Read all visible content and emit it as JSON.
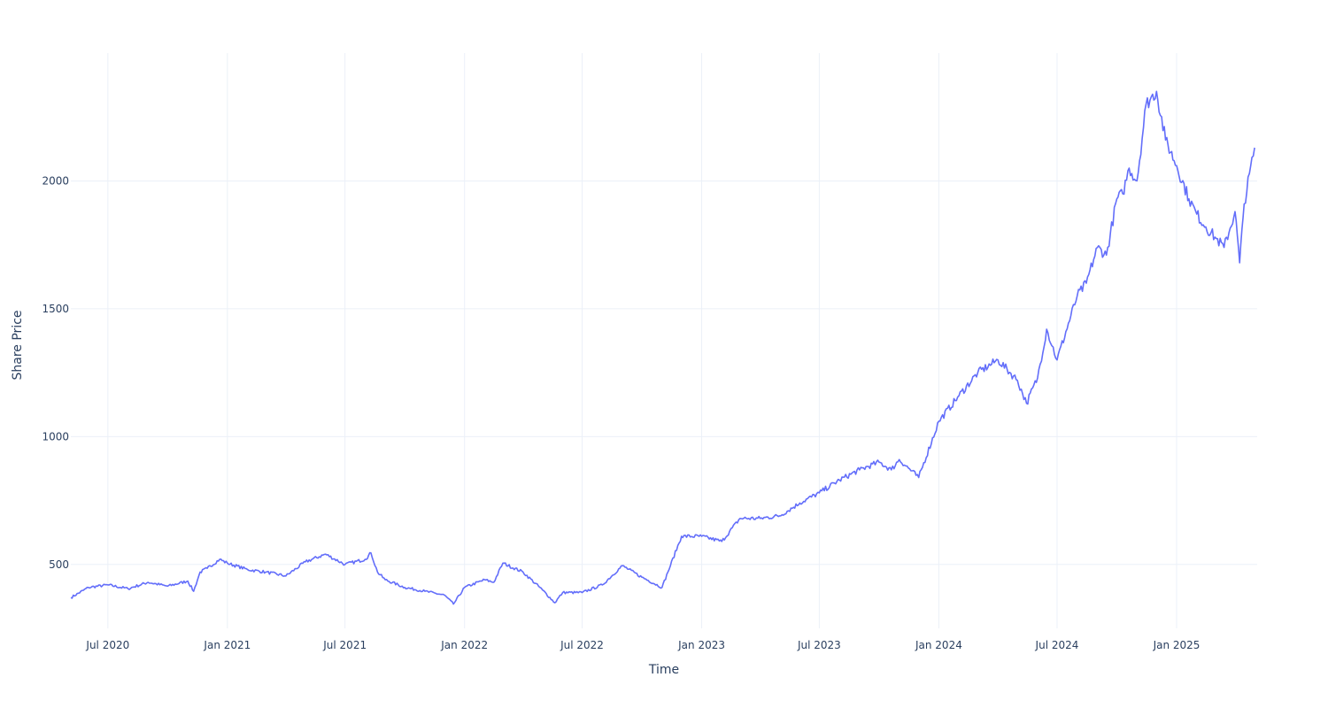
{
  "colors": {
    "series": "#636efa",
    "grid": "#ebf0f8",
    "text": "#2a3f5f"
  },
  "chart_data": {
    "type": "line",
    "title": "",
    "xlabel": "Time",
    "ylabel": "Share Price",
    "grid": true,
    "legend": "none",
    "xlim": [
      "2020-05-05",
      "2025-05-05"
    ],
    "ylim": [
      250,
      2500
    ],
    "x_ticks": [
      "2020-07-01",
      "2021-01-01",
      "2021-07-01",
      "2022-01-01",
      "2022-07-01",
      "2023-01-01",
      "2023-07-01",
      "2024-01-01",
      "2024-07-01",
      "2025-01-01"
    ],
    "x_tick_labels": [
      "Jul 2020",
      "Jan 2021",
      "Jul 2021",
      "Jan 2022",
      "Jul 2022",
      "Jan 2023",
      "Jul 2023",
      "Jan 2024",
      "Jul 2024",
      "Jan 2025"
    ],
    "y_ticks": [
      500,
      1000,
      1500,
      2000
    ],
    "y_tick_labels": [
      "500",
      "1000",
      "1500",
      "2000"
    ],
    "series": [
      {
        "x": [
          "2020-05-05",
          "2020-06-01",
          "2020-07-01",
          "2020-08-01",
          "2020-09-01",
          "2020-10-01",
          "2020-11-01",
          "2020-11-10",
          "2020-11-20",
          "2020-12-01",
          "2020-12-20",
          "2021-01-01",
          "2021-02-01",
          "2021-03-01",
          "2021-04-01",
          "2021-05-01",
          "2021-06-01",
          "2021-07-01",
          "2021-08-01",
          "2021-08-10",
          "2021-08-20",
          "2021-09-01",
          "2021-10-01",
          "2021-11-01",
          "2021-12-01",
          "2021-12-15",
          "2022-01-01",
          "2022-02-01",
          "2022-02-15",
          "2022-03-01",
          "2022-04-01",
          "2022-05-01",
          "2022-05-20",
          "2022-06-01",
          "2022-07-01",
          "2022-08-01",
          "2022-09-01",
          "2022-10-01",
          "2022-11-01",
          "2022-11-10",
          "2022-12-01",
          "2023-01-01",
          "2023-02-01",
          "2023-03-01",
          "2023-04-01",
          "2023-05-01",
          "2023-06-01",
          "2023-07-01",
          "2023-08-01",
          "2023-09-01",
          "2023-10-01",
          "2023-10-20",
          "2023-11-01",
          "2023-12-01",
          "2024-01-01",
          "2024-02-01",
          "2024-03-01",
          "2024-04-01",
          "2024-05-01",
          "2024-05-15",
          "2024-06-01",
          "2024-06-15",
          "2024-07-01",
          "2024-08-01",
          "2024-08-15",
          "2024-09-01",
          "2024-09-15",
          "2024-10-01",
          "2024-10-10",
          "2024-10-20",
          "2024-11-01",
          "2024-11-15",
          "2024-12-01",
          "2024-12-15",
          "2025-01-01",
          "2025-01-20",
          "2025-02-01",
          "2025-02-15",
          "2025-03-01",
          "2025-03-15",
          "2025-04-01",
          "2025-04-08",
          "2025-04-15",
          "2025-05-01"
        ],
        "y": [
          370,
          410,
          420,
          405,
          430,
          415,
          435,
          395,
          470,
          485,
          520,
          505,
          480,
          470,
          455,
          510,
          540,
          500,
          520,
          545,
          470,
          440,
          410,
          395,
          380,
          345,
          410,
          440,
          430,
          505,
          470,
          400,
          350,
          390,
          390,
          420,
          495,
          450,
          410,
          470,
          610,
          610,
          590,
          680,
          680,
          690,
          740,
          780,
          830,
          870,
          900,
          870,
          910,
          840,
          1060,
          1160,
          1250,
          1300,
          1220,
          1130,
          1230,
          1420,
          1300,
          1550,
          1600,
          1740,
          1710,
          1930,
          1950,
          2050,
          2000,
          2300,
          2350,
          2160,
          2060,
          1930,
          1870,
          1820,
          1780,
          1740,
          1880,
          1680,
          1910,
          2130
        ]
      }
    ]
  }
}
